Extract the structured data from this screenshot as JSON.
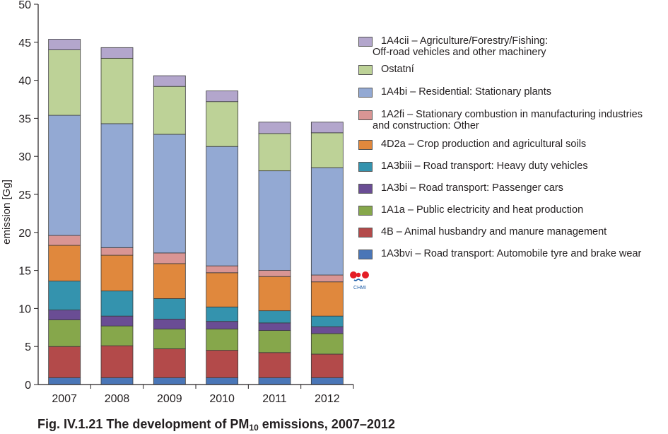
{
  "chart_data": {
    "type": "bar",
    "stacked": true,
    "ylabel": "emission [Gg]",
    "ylim": [
      0,
      50
    ],
    "yticks": [
      0,
      5,
      10,
      15,
      20,
      25,
      30,
      35,
      40,
      45,
      50
    ],
    "categories": [
      "2007",
      "2008",
      "2009",
      "2010",
      "2011",
      "2012"
    ],
    "series": [
      {
        "name": "1A3bvi – Road transport: Automobile tyre and brake wear",
        "color": "#4a76b7",
        "values": [
          0.9,
          0.9,
          0.9,
          0.9,
          0.9,
          0.9
        ]
      },
      {
        "name": "4B – Animal husbandry and manure management",
        "color": "#b34a4a",
        "values": [
          4.1,
          4.2,
          3.8,
          3.6,
          3.3,
          3.1
        ]
      },
      {
        "name": "1A1a – Public electricity and heat production",
        "color": "#86a74b",
        "values": [
          3.5,
          2.6,
          2.6,
          2.8,
          2.9,
          2.7
        ]
      },
      {
        "name": "1A3bi – Road transport: Passenger cars",
        "color": "#6a4d94",
        "values": [
          1.3,
          1.3,
          1.3,
          1.0,
          1.0,
          0.9
        ]
      },
      {
        "name": "1A3biii – Road transport: Heavy duty vehicles",
        "color": "#3493ae",
        "values": [
          3.8,
          3.3,
          2.7,
          1.9,
          1.6,
          1.4
        ]
      },
      {
        "name": "4D2a – Crop production and agricultural soils",
        "color": "#e0883d",
        "values": [
          4.7,
          4.7,
          4.6,
          4.5,
          4.5,
          4.5
        ]
      },
      {
        "name": "1A2fi – Stationary combustion in manufacturing industries and construction: Other",
        "color": "#d99594",
        "values": [
          1.3,
          1.0,
          1.4,
          0.9,
          0.8,
          0.9
        ]
      },
      {
        "name": "1A4bi – Residential: Stationary plants",
        "color": "#93a9d3",
        "values": [
          15.8,
          16.3,
          15.6,
          15.7,
          13.1,
          14.1
        ]
      },
      {
        "name": "Ostatní",
        "color": "#bdd297",
        "values": [
          8.6,
          8.6,
          6.3,
          5.9,
          4.9,
          4.6
        ]
      },
      {
        "name": "1A4cii – Agriculture/Forestry/Fishing: Off-road vehicles and other machinery",
        "color": "#b3a6cc",
        "values": [
          1.4,
          1.4,
          1.4,
          1.4,
          1.5,
          1.4
        ]
      }
    ]
  },
  "legend": [
    {
      "lines": [
        "1A4cii – Agriculture/Forestry/Fishing:",
        "Off-road vehicles and other machinery"
      ],
      "color": "#b3a6cc"
    },
    {
      "lines": [
        "Ostatní"
      ],
      "color": "#bdd297"
    },
    {
      "lines": [
        "1A4bi  – Residential: Stationary plants"
      ],
      "color": "#93a9d3"
    },
    {
      "lines": [
        "1A2fi – Stationary combustion in manufacturing industries",
        "and construction: Other"
      ],
      "color": "#d99594"
    },
    {
      "lines": [
        "4D2a – Crop production and agricultural soils"
      ],
      "color": "#e0883d"
    },
    {
      "lines": [
        "1A3biii – Road transport: Heavy duty vehicles"
      ],
      "color": "#3493ae"
    },
    {
      "lines": [
        "1A3bi – Road transport: Passenger cars"
      ],
      "color": "#6a4d94"
    },
    {
      "lines": [
        "1A1a – Public electricity and heat production"
      ],
      "color": "#86a74b"
    },
    {
      "lines": [
        "4B – Animal husbandry and manure management"
      ],
      "color": "#b34a4a"
    },
    {
      "lines": [
        "1A3bvi – Road transport: Automobile tyre and brake wear"
      ],
      "color": "#4a76b7"
    }
  ],
  "caption": {
    "prefix": "Fig. IV.1.21  The development of PM",
    "subscript": "10",
    "suffix": " emissions, 2007–2012"
  },
  "logo": {
    "text": "CHMI",
    "dot_color": "#e41e26"
  }
}
